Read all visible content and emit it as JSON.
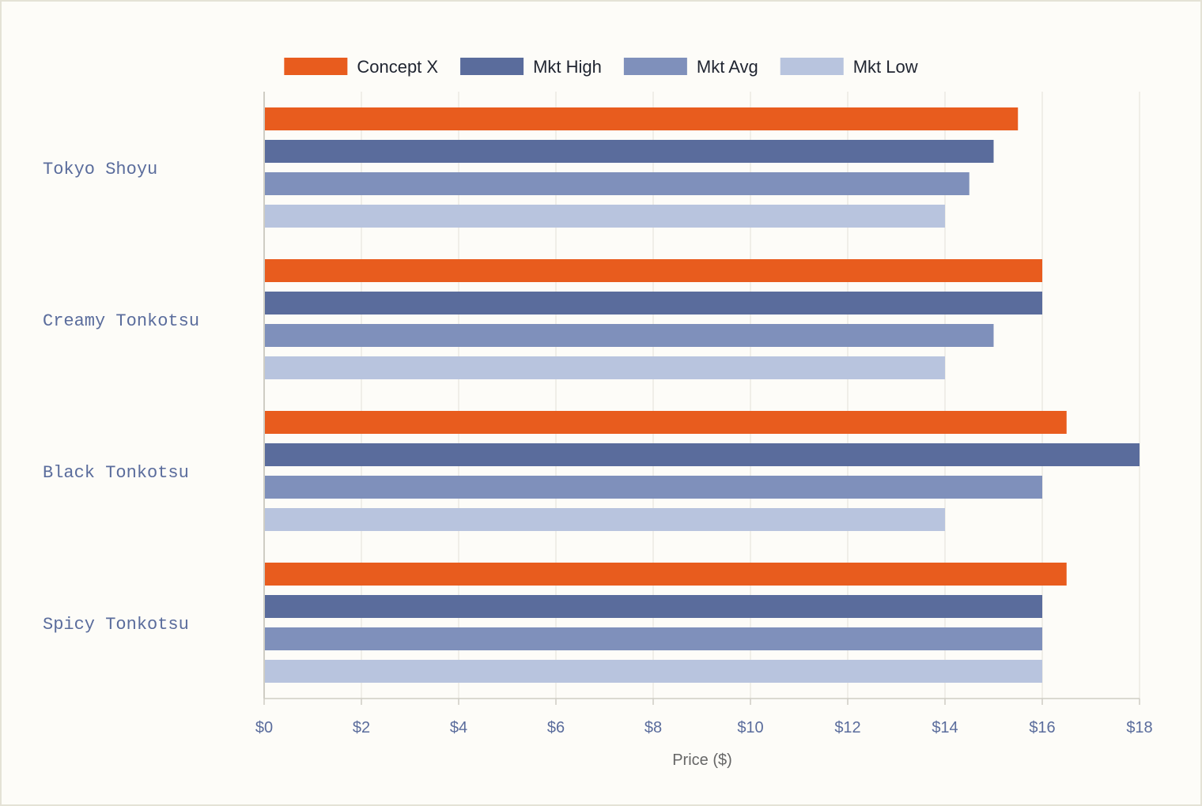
{
  "chart_data": {
    "type": "bar",
    "orientation": "horizontal",
    "categories": [
      "Tokyo Shoyu",
      "Creamy Tonkotsu",
      "Black Tonkotsu",
      "Spicy Tonkotsu"
    ],
    "series": [
      {
        "name": "Concept X",
        "color": "#e85c1e",
        "values": [
          15.5,
          16.0,
          16.5,
          16.5
        ]
      },
      {
        "name": "Mkt High",
        "color": "#5a6c9c",
        "values": [
          15.0,
          16.0,
          18.0,
          16.0
        ]
      },
      {
        "name": "Mkt Avg",
        "color": "#7f90bb",
        "values": [
          14.5,
          15.0,
          16.0,
          16.0
        ]
      },
      {
        "name": "Mkt Low",
        "color": "#b8c4de",
        "values": [
          14.0,
          14.0,
          14.0,
          16.0
        ]
      }
    ],
    "xlabel": "Price ($)",
    "ylabel": "",
    "xlim": [
      0,
      18
    ],
    "xticks": [
      "$0",
      "$2",
      "$4",
      "$6",
      "$8",
      "$10",
      "$12",
      "$14",
      "$16",
      "$18"
    ],
    "grid": "vertical",
    "legend_position": "top-center"
  }
}
